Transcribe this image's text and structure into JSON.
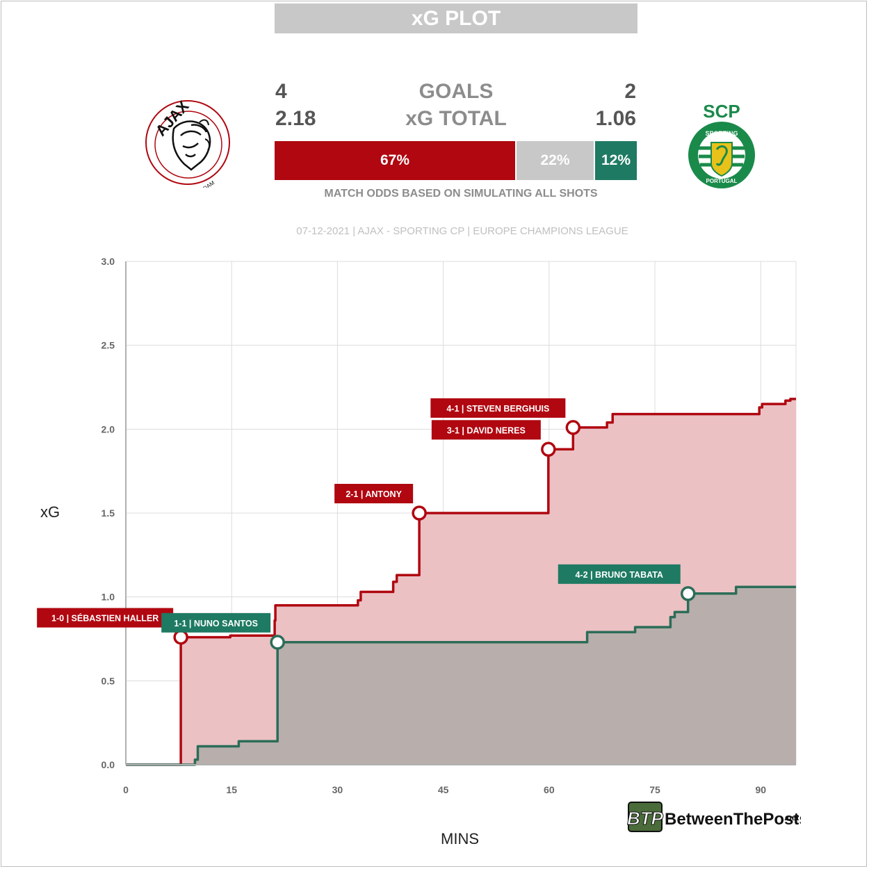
{
  "header": {
    "title": "xG PLOT"
  },
  "stats": {
    "home_goals": "4",
    "away_goals": "2",
    "goals_label": "GOALS",
    "home_xg": "2.18",
    "away_xg": "1.06",
    "xg_label": "xG TOTAL"
  },
  "odds": {
    "home_win": "67%",
    "draw": "22%",
    "away_win": "12%",
    "home_win_value": 67,
    "draw_value": 22,
    "away_win_value": 12,
    "subtitle": "MATCH ODDS BASED ON SIMULATING ALL SHOTS"
  },
  "match_info": "07-12-2021 | AJAX - SPORTING CP | EUROPE CHAMPIONS LEAGUE",
  "logos": {
    "home": {
      "icon": "ajax-crest-icon",
      "text": "AJAX",
      "subtext": "AMSTERDAM"
    },
    "away": {
      "icon": "sporting-crest-icon",
      "text": "SCP",
      "subtext": "SPORTING",
      "subtext2": "PORTUGAL"
    }
  },
  "branding": {
    "icon": "btp-logo-icon",
    "text": "BetweenThePosts",
    "suffix": ".net"
  },
  "colors": {
    "home": "#b00710",
    "home_fill": "#ebc1c4",
    "away": "#2b6d58",
    "away_fill": "#b8aeab",
    "away_label": "#1e7a63",
    "draw": "#c8c8c8"
  },
  "chart_data": {
    "type": "line",
    "xlabel": "MINS",
    "ylabel": "xG",
    "xlim": [
      0,
      95
    ],
    "ylim": [
      0,
      3
    ],
    "x_ticks": [
      0,
      15,
      30,
      45,
      60,
      75,
      90
    ],
    "y_ticks": [
      "0.0",
      "0.5",
      "1.0",
      "1.5",
      "2.0",
      "2.5",
      "3.0"
    ],
    "grid": true,
    "series": [
      {
        "name": "AJAX",
        "points": [
          [
            0,
            0
          ],
          [
            7.8,
            0
          ],
          [
            7.8,
            0.76
          ],
          [
            14.8,
            0.76
          ],
          [
            14.8,
            0.77
          ],
          [
            21.1,
            0.77
          ],
          [
            21.1,
            0.86
          ],
          [
            21.2,
            0.86
          ],
          [
            21.2,
            0.95
          ],
          [
            32.9,
            0.95
          ],
          [
            32.9,
            0.98
          ],
          [
            33.3,
            0.98
          ],
          [
            33.3,
            1.03
          ],
          [
            37.9,
            1.03
          ],
          [
            37.9,
            1.09
          ],
          [
            38.4,
            1.09
          ],
          [
            38.4,
            1.13
          ],
          [
            41.6,
            1.13
          ],
          [
            41.6,
            1.5
          ],
          [
            59.9,
            1.5
          ],
          [
            59.9,
            1.88
          ],
          [
            63.4,
            1.88
          ],
          [
            63.4,
            2.01
          ],
          [
            68.2,
            2.01
          ],
          [
            68.2,
            2.04
          ],
          [
            69.0,
            2.04
          ],
          [
            69.0,
            2.09
          ],
          [
            89.8,
            2.09
          ],
          [
            89.8,
            2.13
          ],
          [
            90.2,
            2.13
          ],
          [
            90.2,
            2.15
          ],
          [
            93.5,
            2.15
          ],
          [
            93.5,
            2.17
          ],
          [
            94.2,
            2.17
          ],
          [
            94.2,
            2.18
          ],
          [
            95,
            2.18
          ]
        ]
      },
      {
        "name": "SPORTING CP",
        "points": [
          [
            0,
            0
          ],
          [
            9.8,
            0
          ],
          [
            9.8,
            0.03
          ],
          [
            10.2,
            0.03
          ],
          [
            10.2,
            0.11
          ],
          [
            16.0,
            0.11
          ],
          [
            16.0,
            0.14
          ],
          [
            21.5,
            0.14
          ],
          [
            21.5,
            0.73
          ],
          [
            65.4,
            0.73
          ],
          [
            65.4,
            0.79
          ],
          [
            72.2,
            0.79
          ],
          [
            72.2,
            0.82
          ],
          [
            77.2,
            0.82
          ],
          [
            77.2,
            0.88
          ],
          [
            77.8,
            0.88
          ],
          [
            77.8,
            0.91
          ],
          [
            79.7,
            0.91
          ],
          [
            79.7,
            1.02
          ],
          [
            86.5,
            1.02
          ],
          [
            86.5,
            1.06
          ],
          [
            95,
            1.06
          ]
        ]
      }
    ],
    "goals": [
      {
        "team": "home",
        "minute": 7.8,
        "xg": 0.76,
        "label": "1-0 | SÉBASTIEN HALLER"
      },
      {
        "team": "away",
        "minute": 21.5,
        "xg": 0.73,
        "label": "1-1 | NUNO SANTOS"
      },
      {
        "team": "home",
        "minute": 41.6,
        "xg": 1.5,
        "label": "2-1 | ANTONY"
      },
      {
        "team": "home",
        "minute": 59.9,
        "xg": 1.88,
        "label": "3-1 | DAVID NERES"
      },
      {
        "team": "home",
        "minute": 63.4,
        "xg": 2.01,
        "label": "4-1 | STEVEN BERGHUIS"
      },
      {
        "team": "away",
        "minute": 79.7,
        "xg": 1.02,
        "label": "4-2 | BRUNO TABATA"
      }
    ]
  }
}
